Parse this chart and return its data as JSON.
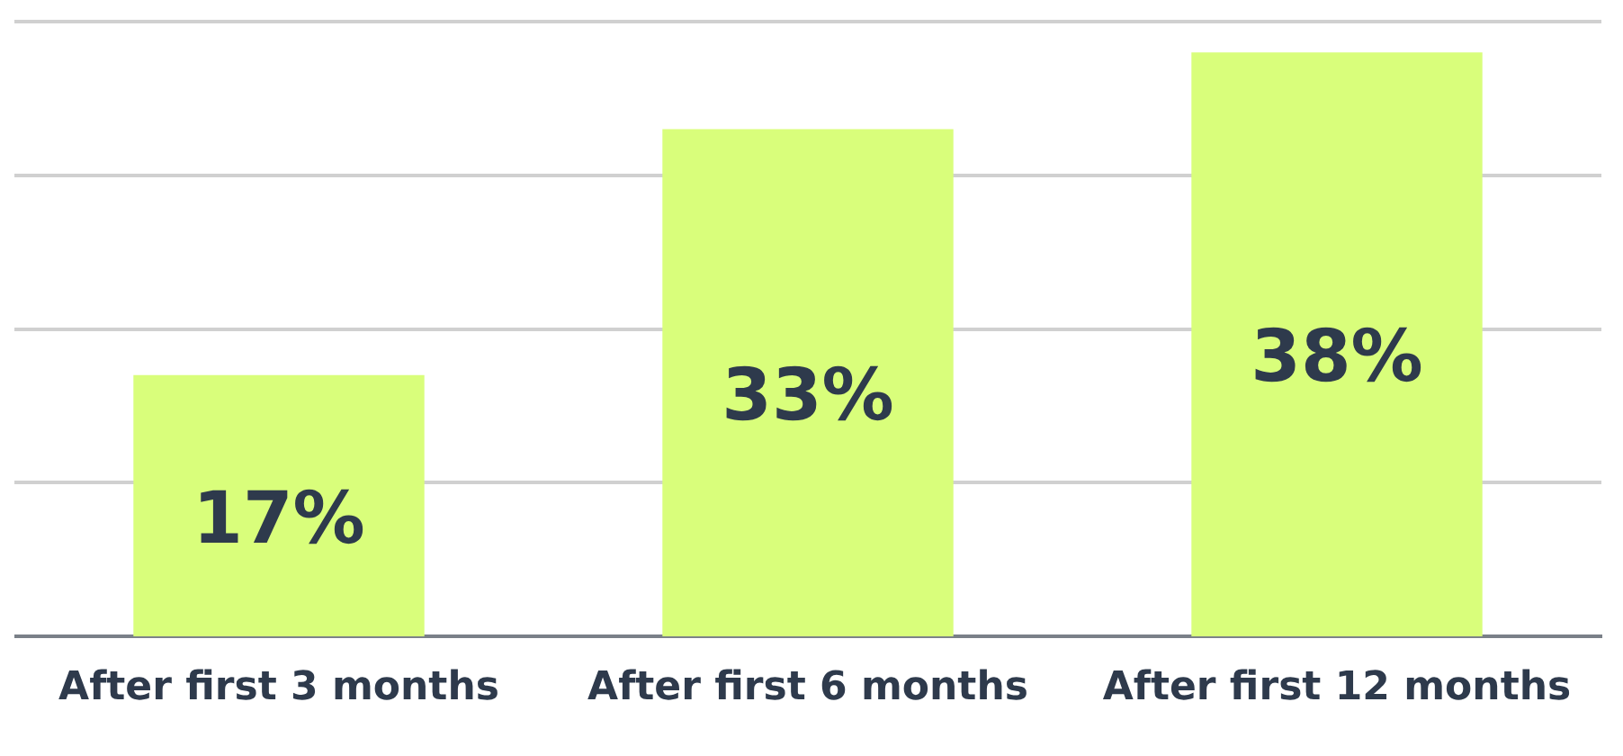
{
  "chart_data": {
    "type": "bar",
    "categories": [
      "After first 3 months",
      "After first 6 months",
      "After first 12 months"
    ],
    "values": [
      17,
      33,
      38
    ],
    "color": "#d9fe7b",
    "value_labels": [
      "17%",
      "33%",
      "38%"
    ],
    "ylim": [
      0,
      40
    ],
    "yticks": [
      {
        "value": 10,
        "label": null
      },
      {
        "value": 20,
        "label": null
      },
      {
        "value": 30,
        "label": null
      },
      {
        "value": 40,
        "label": null
      }
    ],
    "grid": "y",
    "tick_labels": "x"
  }
}
